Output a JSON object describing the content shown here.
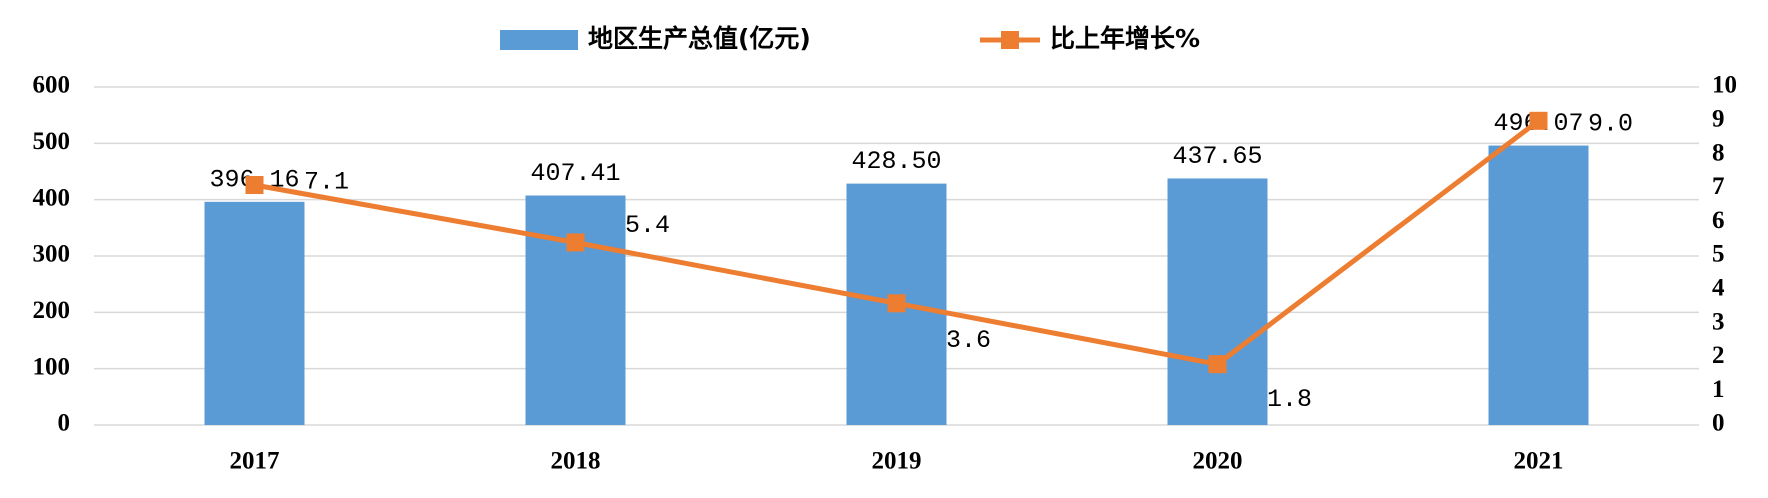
{
  "chart_data": {
    "type": "bar",
    "categories": [
      "2017",
      "2018",
      "2019",
      "2020",
      "2021"
    ],
    "series": [
      {
        "name": "地区生产总值(亿元)",
        "type": "bar",
        "color": "#5b9bd5",
        "values": [
          396.16,
          407.41,
          428.5,
          437.65,
          496.07
        ],
        "value_labels": [
          "396.16",
          "407.41",
          "428.50",
          "437.65",
          "496.07"
        ]
      },
      {
        "name": "比上年增长%",
        "type": "line",
        "axis": "y2",
        "color": "#ed7d31",
        "values": [
          7.1,
          5.4,
          3.6,
          1.8,
          9.0
        ],
        "value_labels": [
          "7.1",
          "5.4",
          "3.6",
          "1.8",
          "9.0"
        ]
      }
    ],
    "ylim": [
      0,
      600
    ],
    "yticks": [
      0,
      100,
      200,
      300,
      400,
      500,
      600
    ],
    "y2lim": [
      0,
      10
    ],
    "y2ticks": [
      0,
      1,
      2,
      3,
      4,
      5,
      6,
      7,
      8,
      9,
      10
    ],
    "grid": true,
    "legend": "top"
  }
}
